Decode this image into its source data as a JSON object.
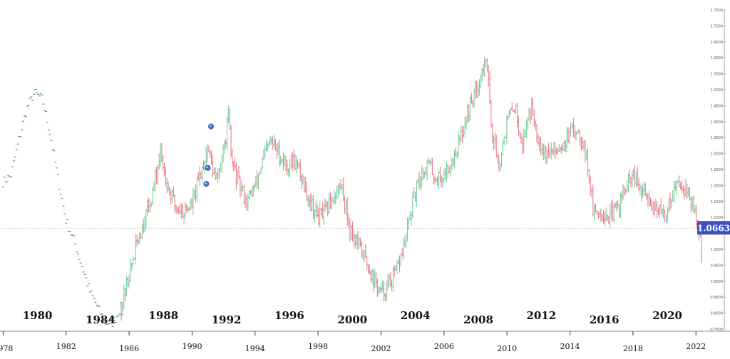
{
  "chart_data": {
    "type": "bar",
    "style": "ohlc",
    "title": "",
    "xlabel": "",
    "ylabel": "",
    "xlim": [
      1977.8,
      2023.8
    ],
    "ylim": [
      0.75,
      1.75
    ],
    "grid": false,
    "colors": {
      "up": "#6cc896",
      "down": "#f07080",
      "sparse": "#3f7f6f",
      "current_line": "#b8c8b0",
      "price_tag": "#3a4fc4"
    },
    "y_ticks": [
      "0.7500",
      "0.8000",
      "0.8500",
      "0.9000",
      "0.9500",
      "1.0000",
      "1.0500",
      "1.1000",
      "1.1500",
      "1.2000",
      "1.2500",
      "1.3000",
      "1.3500",
      "1.4000",
      "1.4500",
      "1.5000",
      "1.5500",
      "1.6000",
      "1.6500",
      "1.7000",
      "1.7500"
    ],
    "x_ticks": [
      "1978",
      "1982",
      "1986",
      "1990",
      "1994",
      "1998",
      "2002",
      "2006",
      "2010",
      "2014",
      "2018",
      "2022"
    ],
    "era_labels": [
      "1980",
      "1984",
      "1988",
      "1992",
      "1996",
      "2000",
      "2004",
      "2008",
      "2012",
      "2016",
      "2020"
    ],
    "current_price": "1.0663",
    "event_markers": [
      {
        "year": 1991.2,
        "price": 1.385,
        "icon": "event-marker-icon"
      },
      {
        "year": 1991.0,
        "price": 1.255,
        "icon": "event-marker-icon"
      },
      {
        "year": 1990.9,
        "price": 1.205,
        "icon": "event-marker-icon"
      }
    ],
    "sparse_segment": {
      "note": "pre-1986 history drawn as sparse dashes",
      "years": [
        1978.0,
        1978.5,
        1979.0,
        1979.5,
        1980.0,
        1980.5,
        1981.0,
        1981.5,
        1982.0,
        1982.5,
        1983.0,
        1983.5,
        1984.0,
        1984.5,
        1985.0,
        1985.5
      ],
      "values": [
        1.21,
        1.23,
        1.34,
        1.44,
        1.49,
        1.47,
        1.36,
        1.22,
        1.09,
        1.03,
        0.95,
        0.87,
        0.82,
        0.77,
        0.77,
        0.82
      ]
    },
    "series": [
      {
        "years": [
          1985.5,
          1986.0,
          1986.5,
          1987.0,
          1987.5,
          1988.0,
          1988.5,
          1989.0,
          1989.5,
          1990.0,
          1990.5,
          1991.0,
          1991.5,
          1992.0,
          1992.3,
          1992.5,
          1993.0,
          1993.5,
          1994.0,
          1994.5,
          1995.0,
          1995.5,
          1996.0,
          1996.5,
          1997.0,
          1997.5,
          1998.0,
          1998.5,
          1999.0,
          1999.5,
          2000.0,
          2000.5,
          2001.0,
          2001.5,
          2002.0,
          2002.5,
          2003.0,
          2003.5,
          2004.0,
          2004.5,
          2005.0,
          2005.5,
          2006.0,
          2006.5,
          2007.0,
          2007.5,
          2008.0,
          2008.5,
          2008.8,
          2009.0,
          2009.5,
          2010.0,
          2010.5,
          2011.0,
          2011.3,
          2011.6,
          2012.0,
          2012.5,
          2013.0,
          2013.5,
          2014.0,
          2014.5,
          2014.9,
          2015.2,
          2015.5,
          2016.0,
          2016.5,
          2017.0,
          2017.5,
          2018.0,
          2018.5,
          2019.0,
          2019.5,
          2020.0,
          2020.5,
          2021.0,
          2021.5,
          2022.0,
          2022.4
        ],
        "values": [
          0.82,
          0.92,
          1.02,
          1.1,
          1.18,
          1.3,
          1.19,
          1.13,
          1.12,
          1.14,
          1.23,
          1.32,
          1.21,
          1.3,
          1.42,
          1.28,
          1.2,
          1.15,
          1.2,
          1.28,
          1.34,
          1.3,
          1.26,
          1.28,
          1.22,
          1.15,
          1.1,
          1.12,
          1.17,
          1.2,
          1.07,
          1.02,
          0.97,
          0.91,
          0.86,
          0.89,
          0.93,
          1.02,
          1.14,
          1.23,
          1.27,
          1.22,
          1.23,
          1.28,
          1.34,
          1.43,
          1.5,
          1.57,
          1.58,
          1.37,
          1.27,
          1.4,
          1.45,
          1.32,
          1.42,
          1.44,
          1.35,
          1.3,
          1.31,
          1.33,
          1.36,
          1.38,
          1.33,
          1.24,
          1.11,
          1.12,
          1.1,
          1.13,
          1.19,
          1.23,
          1.18,
          1.16,
          1.13,
          1.1,
          1.18,
          1.21,
          1.18,
          1.1,
          0.99
        ]
      }
    ]
  }
}
